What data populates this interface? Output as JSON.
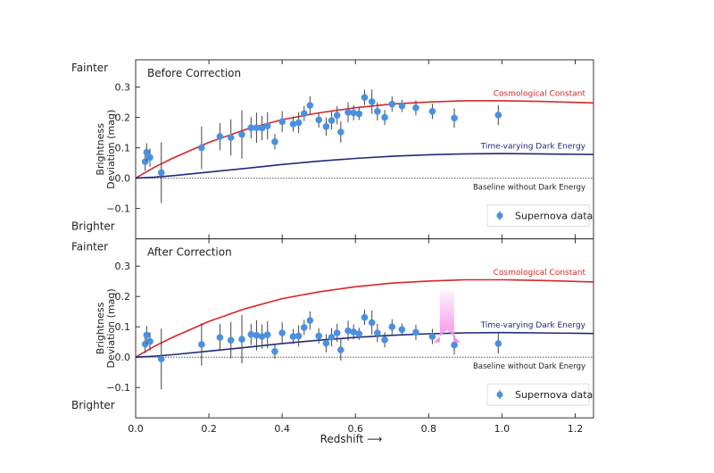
{
  "chart_data": {
    "type": "scatter",
    "xlabel": "Redshift ⟶",
    "ylabel": [
      "Brightness",
      "Deviation (mag)"
    ],
    "xlim": [
      0.0,
      1.25
    ],
    "ylim": [
      -0.2,
      0.39
    ],
    "xticks": [
      0.0,
      0.2,
      0.4,
      0.6,
      0.8,
      1.0,
      1.2
    ],
    "yticks": [
      -0.1,
      0.0,
      0.1,
      0.2,
      0.3
    ],
    "side_labels": {
      "top": "Fainter",
      "bottom": "Brighter"
    },
    "grid": false,
    "legend_placement": "bottom-right",
    "colors": {
      "cosmological_constant": "#d62728",
      "time_varying": "#1f2a7a",
      "data": "#4a90e2",
      "baseline": "#555555",
      "arrow": "#f58ae8"
    },
    "curves": {
      "x": [
        0,
        0.05,
        0.1,
        0.2,
        0.3,
        0.4,
        0.5,
        0.6,
        0.7,
        0.8,
        0.9,
        1.0,
        1.1,
        1.25
      ],
      "cosmological_constant": {
        "name": "Cosmological Constant",
        "y": [
          0,
          0.035,
          0.065,
          0.118,
          0.16,
          0.193,
          0.215,
          0.232,
          0.244,
          0.251,
          0.255,
          0.255,
          0.253,
          0.248
        ]
      },
      "time_varying": {
        "name": "Time-varying Dark Energy",
        "y": [
          0,
          0.003,
          0.008,
          0.02,
          0.032,
          0.045,
          0.056,
          0.065,
          0.072,
          0.077,
          0.08,
          0.081,
          0.08,
          0.078
        ]
      },
      "baseline": {
        "name": "Baseline without Dark Energy",
        "y": 0
      }
    },
    "legend": "Supernova data",
    "x": [
      0.026,
      0.03,
      0.039,
      0.07,
      0.18,
      0.23,
      0.26,
      0.29,
      0.315,
      0.33,
      0.345,
      0.36,
      0.38,
      0.4,
      0.43,
      0.445,
      0.46,
      0.476,
      0.5,
      0.52,
      0.535,
      0.55,
      0.56,
      0.58,
      0.595,
      0.61,
      0.625,
      0.645,
      0.66,
      0.68,
      0.7,
      0.727,
      0.765,
      0.81,
      0.87,
      0.99
    ],
    "err": [
      0.03,
      0.03,
      0.03,
      0.1,
      0.07,
      0.045,
      0.06,
      0.08,
      0.035,
      0.05,
      0.04,
      0.045,
      0.025,
      0.035,
      0.025,
      0.035,
      0.025,
      0.03,
      0.025,
      0.03,
      0.03,
      0.03,
      0.035,
      0.033,
      0.025,
      0.02,
      0.025,
      0.04,
      0.03,
      0.025,
      0.025,
      0.02,
      0.025,
      0.025,
      0.032,
      0.033
    ],
    "panels": [
      {
        "title": "Before Correction",
        "y": [
          0.054,
          0.085,
          0.068,
          0.018,
          0.1,
          0.137,
          0.134,
          0.144,
          0.166,
          0.166,
          0.165,
          0.172,
          0.12,
          0.186,
          0.178,
          0.183,
          0.213,
          0.24,
          0.192,
          0.17,
          0.19,
          0.207,
          0.152,
          0.217,
          0.215,
          0.212,
          0.266,
          0.252,
          0.22,
          0.2,
          0.244,
          0.238,
          0.232,
          0.22,
          0.198,
          0.208
        ]
      },
      {
        "title": "After Correction",
        "y": [
          0.043,
          0.073,
          0.052,
          -0.006,
          0.042,
          0.065,
          0.056,
          0.059,
          0.075,
          0.072,
          0.068,
          0.074,
          0.019,
          0.08,
          0.068,
          0.07,
          0.098,
          0.121,
          0.07,
          0.046,
          0.066,
          0.08,
          0.024,
          0.087,
          0.083,
          0.077,
          0.131,
          0.114,
          0.08,
          0.057,
          0.1,
          0.091,
          0.082,
          0.068,
          0.04,
          0.045
        ],
        "arrow": {
          "x": 0.85,
          "y_from": 0.22,
          "y_to": 0.09
        }
      }
    ]
  }
}
